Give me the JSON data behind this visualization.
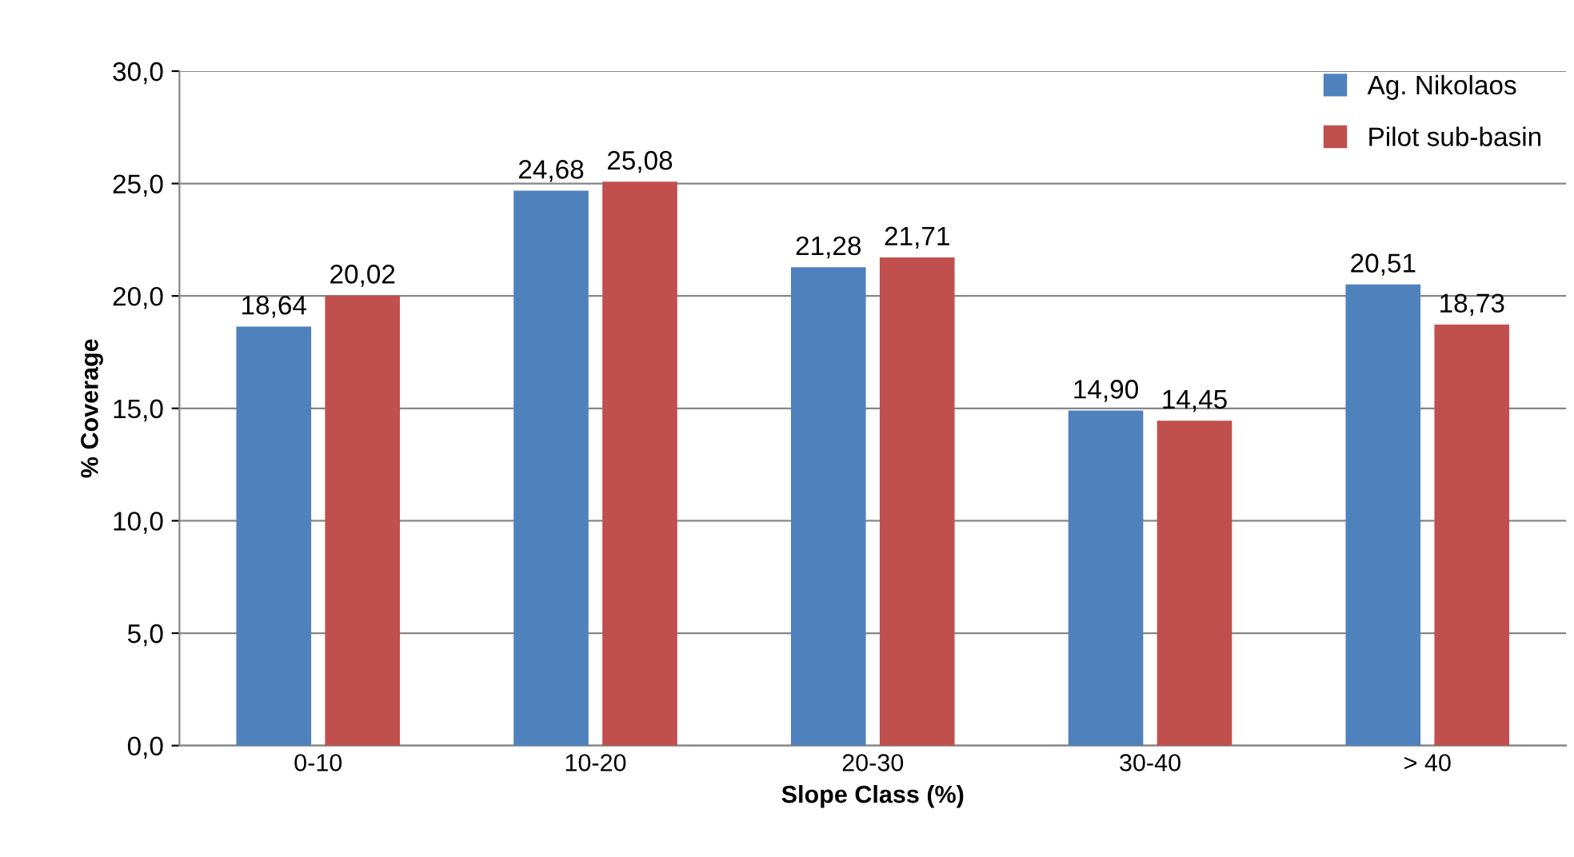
{
  "chart_data": {
    "type": "bar",
    "xlabel": "Slope Class (%)",
    "ylabel": "% Coverage",
    "categories": [
      "0-10",
      "10-20",
      "20-30",
      "30-40",
      "> 40"
    ],
    "series": [
      {
        "name": "Ag. Nikolaos",
        "color": "#4f81bd",
        "values": [
          18.64,
          24.68,
          21.28,
          14.9,
          20.51
        ],
        "value_labels": [
          "18,64",
          "24,68",
          "21,28",
          "14,90",
          "20,51"
        ]
      },
      {
        "name": "Pilot sub-basin",
        "color": "#c0504d",
        "values": [
          20.02,
          25.08,
          21.71,
          14.45,
          18.73
        ],
        "value_labels": [
          "20,02",
          "25,08",
          "21,71",
          "14,45",
          "18,73"
        ]
      }
    ],
    "ylim": [
      0,
      30
    ],
    "yticks": [
      {
        "value": 0,
        "label": "0,0"
      },
      {
        "value": 5,
        "label": "5,0"
      },
      {
        "value": 10,
        "label": "10,0"
      },
      {
        "value": 15,
        "label": "15,0"
      },
      {
        "value": 20,
        "label": "20,0"
      },
      {
        "value": 25,
        "label": "25,0"
      },
      {
        "value": 30,
        "label": "30,0"
      }
    ],
    "grid": "y",
    "legend": "top right"
  }
}
